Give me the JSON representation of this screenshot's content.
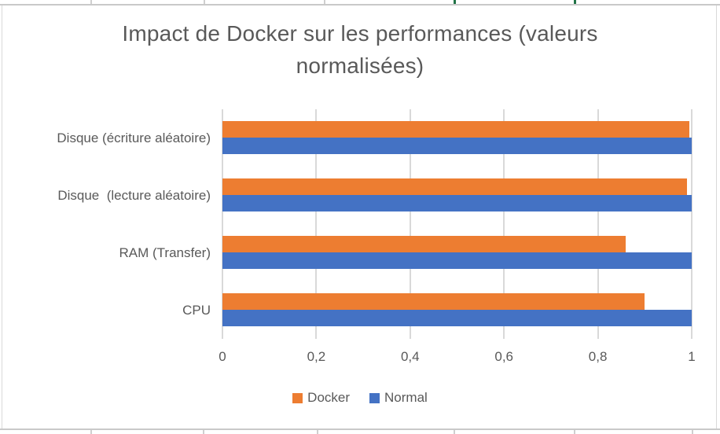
{
  "chart_data": {
    "type": "bar",
    "orientation": "horizontal",
    "title": "Impact de Docker sur les performances (valeurs normalisées)",
    "categories": [
      "Disque (écriture aléatoire)",
      "Disque  (lecture aléatoire)",
      "RAM (Transfer)",
      "CPU"
    ],
    "categories_order": "top-to-bottom",
    "series": [
      {
        "name": "Docker",
        "color": "#ED7D31",
        "values": [
          0.995,
          0.99,
          0.86,
          0.9
        ]
      },
      {
        "name": "Normal",
        "color": "#4472C4",
        "values": [
          1.0,
          1.0,
          1.0,
          1.0
        ]
      }
    ],
    "x_axis": {
      "min": 0,
      "max": 1,
      "tick_labels": [
        "0",
        "0,2",
        "0,4",
        "0,6",
        "0,8",
        "1"
      ],
      "tick_values": [
        0,
        0.2,
        0.4,
        0.6,
        0.8,
        1
      ]
    },
    "grid": true,
    "legend_position": "bottom",
    "colors": {
      "docker": "#ED7D31",
      "normal": "#4472C4",
      "gridline": "#D9D9D9",
      "text": "#595959",
      "sheet_border": "#C9C9C9",
      "excel_green": "#217346"
    }
  }
}
